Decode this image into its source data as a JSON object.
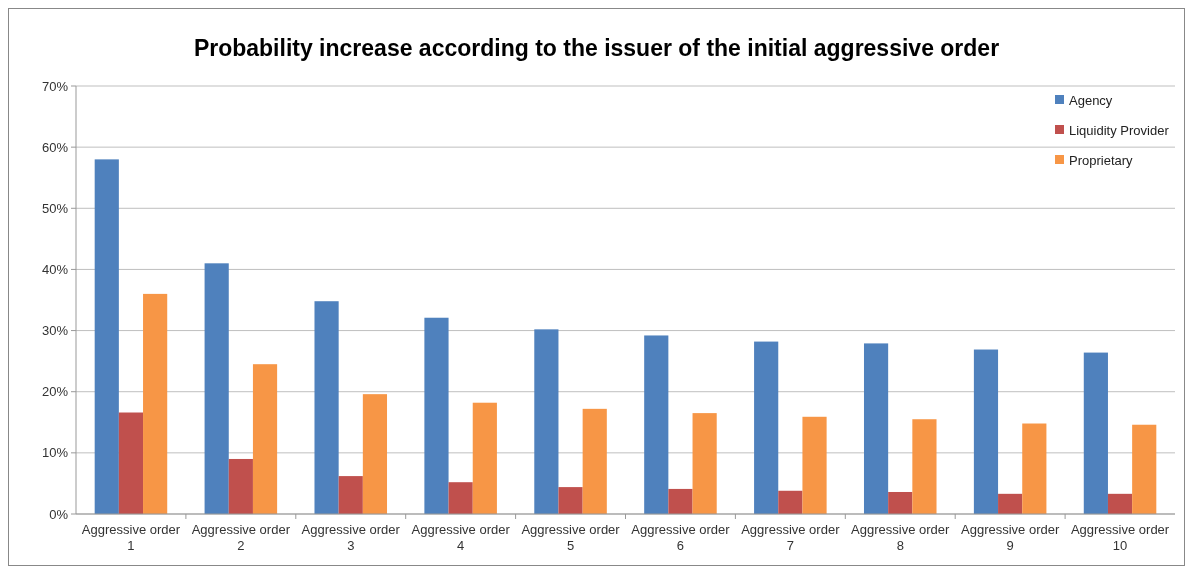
{
  "chart_data": {
    "type": "bar",
    "title": "Probability increase according to the issuer of the initial aggressive order",
    "categories": [
      "Aggressive order 1",
      "Aggressive order 2",
      "Aggressive order 3",
      "Aggressive order 4",
      "Aggressive order 5",
      "Aggressive order 6",
      "Aggressive order 7",
      "Aggressive order 8",
      "Aggressive order 9",
      "Aggressive order 10"
    ],
    "series": [
      {
        "name": "Agency",
        "color": "#4f81bd",
        "values": [
          58,
          41,
          34.8,
          32.1,
          30.2,
          29.2,
          28.2,
          27.9,
          26.9,
          26.4
        ]
      },
      {
        "name": "Liquidity Provider",
        "color": "#c0504d",
        "values": [
          16.6,
          9,
          6.2,
          5.2,
          4.4,
          4.1,
          3.8,
          3.6,
          3.3,
          3.3
        ]
      },
      {
        "name": "Proprietary",
        "color": "#f79646",
        "values": [
          36,
          24.5,
          19.6,
          18.2,
          17.2,
          16.5,
          15.9,
          15.5,
          14.8,
          14.6
        ]
      }
    ],
    "ylim": [
      0,
      70
    ],
    "yticks": [
      {
        "value": 0,
        "label": "0%"
      },
      {
        "value": 10,
        "label": "10%"
      },
      {
        "value": 20,
        "label": "20%"
      },
      {
        "value": 30,
        "label": "30%"
      },
      {
        "value": 40,
        "label": "40%"
      },
      {
        "value": 50,
        "label": "50%"
      },
      {
        "value": 60,
        "label": "60%"
      },
      {
        "value": 70,
        "label": "70%"
      }
    ],
    "grid": "y",
    "legend": "top right"
  }
}
